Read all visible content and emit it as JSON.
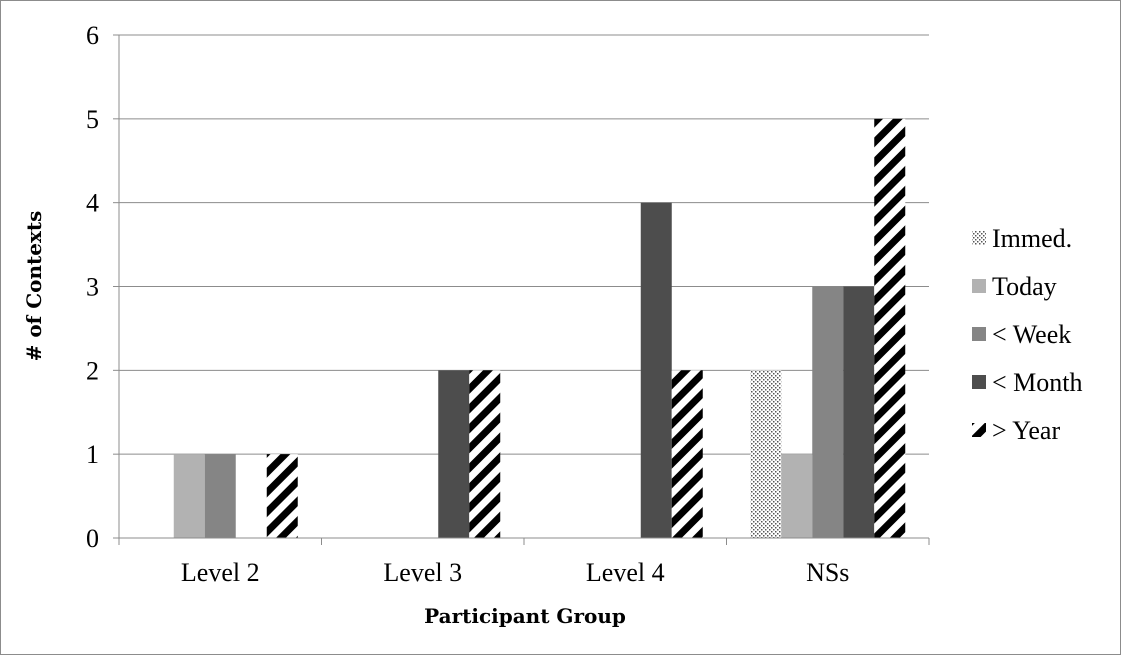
{
  "chart_data": {
    "type": "bar",
    "title": "",
    "xlabel": "Participant Group",
    "ylabel": "# of Contexts",
    "categories": [
      "Level 2",
      "Level 3",
      "Level 4",
      "NSs"
    ],
    "ylim": [
      0,
      6
    ],
    "yticks": [
      "0",
      "1",
      "2",
      "3",
      "4",
      "5",
      "6"
    ],
    "grid": true,
    "legend_position": "right",
    "series": [
      {
        "name": "Immed.",
        "values": [
          0,
          0,
          0,
          2
        ],
        "pattern": "dots",
        "color": "#ffffff"
      },
      {
        "name": "Today",
        "values": [
          1,
          0,
          0,
          1
        ],
        "pattern": "solid",
        "color": "#b2b2b2"
      },
      {
        "name": "< Week",
        "values": [
          1,
          0,
          0,
          3
        ],
        "pattern": "solid",
        "color": "#858585"
      },
      {
        "name": "< Month",
        "values": [
          0,
          2,
          4,
          3
        ],
        "pattern": "solid",
        "color": "#4d4d4d"
      },
      {
        "name": "> Year",
        "values": [
          1,
          2,
          2,
          5
        ],
        "pattern": "diagonal-stripes",
        "color": "#000000"
      }
    ]
  }
}
